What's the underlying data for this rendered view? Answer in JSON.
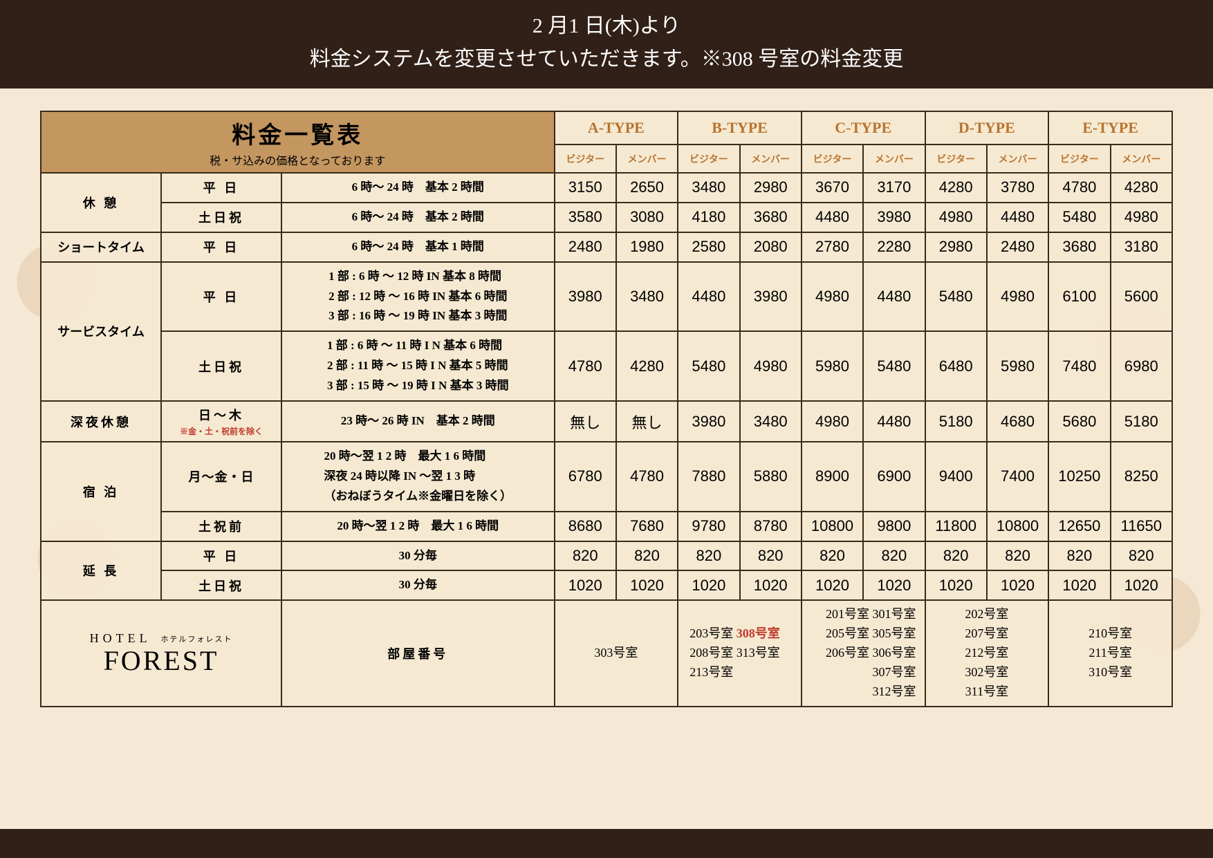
{
  "header": {
    "line1": "2 月1 日(木)より",
    "line2": "料金システムを変更させていただきます。※308 号室の料金変更"
  },
  "table_title": "料金一覧表",
  "table_subtitle": "税・サ込みの価格となっております",
  "room_types": [
    "A-TYPE",
    "B-TYPE",
    "C-TYPE",
    "D-TYPE",
    "E-TYPE"
  ],
  "sub_headers": [
    "ビジター",
    "メンバー"
  ],
  "rows": [
    {
      "category": "休 憩",
      "rowspan": 2,
      "entries": [
        {
          "day": "平 日",
          "time": "6 時～ 24 時　基本 2 時間",
          "prices": [
            3150,
            2650,
            3480,
            2980,
            3670,
            3170,
            4280,
            3780,
            4780,
            4280
          ]
        },
        {
          "day": "土日祝",
          "time": "6 時～ 24 時　基本 2 時間",
          "prices": [
            3580,
            3080,
            4180,
            3680,
            4480,
            3980,
            4980,
            4480,
            5480,
            4980
          ]
        }
      ]
    },
    {
      "category": "ショートタイム",
      "rowspan": 1,
      "entries": [
        {
          "day": "平 日",
          "time": "6 時～ 24 時　基本 1 時間",
          "prices": [
            2480,
            1980,
            2580,
            2080,
            2780,
            2280,
            2980,
            2480,
            3680,
            3180
          ]
        }
      ]
    },
    {
      "category": "サービスタイム",
      "rowspan": 2,
      "entries": [
        {
          "day": "平 日",
          "time_lines": [
            "1 部 : 6 時 ～ 12 時 IN  基本 8 時間",
            "2 部 : 12 時 ～ 16 時 IN  基本 6 時間",
            "3 部 : 16 時 ～ 19 時 IN  基本 3 時間"
          ],
          "prices": [
            3980,
            3480,
            4480,
            3980,
            4980,
            4480,
            5480,
            4980,
            6100,
            5600
          ]
        },
        {
          "day": "土日祝",
          "time_lines": [
            "1 部 : 6 時 ～ 11 時 I N  基本 6 時間",
            "2 部 : 11 時 ～ 15 時 I N  基本 5 時間",
            "3 部 : 15 時 ～ 19 時 I N  基本 3 時間"
          ],
          "prices": [
            4780,
            4280,
            5480,
            4980,
            5980,
            5480,
            6480,
            5980,
            7480,
            6980
          ]
        }
      ]
    },
    {
      "category": "深夜休憩",
      "rowspan": 1,
      "entries": [
        {
          "day": "日～木",
          "day_note": "※金・土・祝前を除く",
          "time": "23 時～ 26 時 IN　基本 2 時間",
          "prices": [
            "無し",
            "無し",
            3980,
            3480,
            4980,
            4480,
            5180,
            4680,
            5680,
            5180
          ]
        }
      ]
    },
    {
      "category": "宿 泊",
      "rowspan": 2,
      "entries": [
        {
          "day": "月～金・日",
          "day_letterspacing": "1px",
          "time_lines": [
            "20 時～翌 1 2 時　最大 1 6 時間",
            "深夜 24 時以降 IN ～翌 1 3 時",
            "（おねぼうタイム※金曜日を除く）"
          ],
          "prices": [
            6780,
            4780,
            7880,
            5880,
            8900,
            6900,
            9400,
            7400,
            10250,
            8250
          ]
        },
        {
          "day": "土祝前",
          "time": "20 時～翌 1 2 時　最大 1 6 時間",
          "prices": [
            8680,
            7680,
            9780,
            8780,
            10800,
            9800,
            11800,
            10800,
            12650,
            11650
          ]
        }
      ]
    },
    {
      "category": "延 長",
      "rowspan": 2,
      "entries": [
        {
          "day": "平 日",
          "time": "30 分毎",
          "prices": [
            820,
            820,
            820,
            820,
            820,
            820,
            820,
            820,
            820,
            820
          ]
        },
        {
          "day": "土日祝",
          "time": "30 分毎",
          "prices": [
            1020,
            1020,
            1020,
            1020,
            1020,
            1020,
            1020,
            1020,
            1020,
            1020
          ]
        }
      ]
    }
  ],
  "rooms_label": "部屋番号",
  "brand": {
    "top": "HOTEL",
    "top_jp": "ホテルフォレスト",
    "main": "FOREST"
  },
  "rooms": {
    "a": "303号室",
    "b": {
      "lines": [
        "203号室 |308号室|",
        "208号室 313号室",
        "213号室"
      ],
      "align": "left"
    },
    "c": {
      "lines": [
        "201号室 301号室",
        "205号室 305号室",
        "206号室 306号室",
        "　　　 307号室",
        "　　　 312号室"
      ],
      "align": "right"
    },
    "d": {
      "lines": [
        "202号室",
        "207号室",
        "212号室",
        "302号室",
        "311号室"
      ]
    },
    "e": {
      "lines": [
        "210号室",
        "211号室",
        "310号室"
      ]
    }
  },
  "colors": {
    "header_bg": "#312018",
    "header_fg": "#ffffff",
    "body_bg": "#f5e8d4",
    "title_bg": "#c49660",
    "type_fg": "#b8742f",
    "border": "#3a2a1a",
    "highlight": "#c0392b"
  }
}
